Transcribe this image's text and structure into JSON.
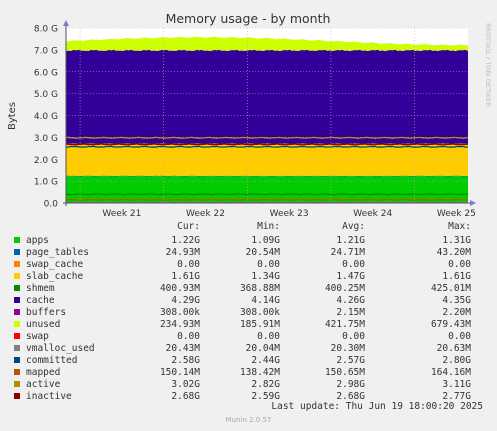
{
  "chart_data": {
    "type": "area",
    "title": "Memory usage - by month",
    "ylabel": "Bytes",
    "side_label": "RRDTOOL / TOBI OETIKER",
    "x_ticks": [
      "Week 21",
      "Week 22",
      "Week 23",
      "Week 24",
      "Week 25"
    ],
    "y_ticks": [
      "0.0",
      "1.0 G",
      "2.0 G",
      "3.0 G",
      "4.0 G",
      "5.0 G",
      "6.0 G",
      "7.0 G",
      "8.0 G"
    ],
    "ylim": [
      0,
      8
    ],
    "y_unit": "G",
    "grid": true,
    "stack_series": [
      {
        "name": "apps",
        "value": 1.22,
        "color": "#00cc00"
      },
      {
        "name": "page_tables",
        "value": 0.025,
        "color": "#0066b3"
      },
      {
        "name": "swap_cache",
        "value": 0.0,
        "color": "#ff8000"
      },
      {
        "name": "slab_cache",
        "value": 1.47,
        "color": "#ffcc00"
      },
      {
        "name": "cache",
        "value": 4.26,
        "color": "#330099"
      },
      {
        "name": "buffers",
        "value": 0.002,
        "color": "#990099"
      },
      {
        "name": "unused",
        "value": 0.42,
        "color": "#ccff00"
      }
    ],
    "line_series": [
      {
        "name": "shmem",
        "value": 0.4,
        "color": "#008f00"
      },
      {
        "name": "vmalloc_used",
        "value": 0.02,
        "color": "#808080"
      },
      {
        "name": "committed",
        "value": 2.57,
        "color": "#00487d"
      },
      {
        "name": "mapped",
        "value": 0.15,
        "color": "#b35a00"
      },
      {
        "name": "active",
        "value": 2.98,
        "color": "#b38f00"
      },
      {
        "name": "inactive",
        "value": 2.68,
        "color": "#8c0000"
      }
    ]
  },
  "legend": {
    "headers": {
      "cur": "Cur:",
      "min": "Min:",
      "avg": "Avg:",
      "max": "Max:"
    },
    "rows": [
      {
        "name": "apps",
        "color": "#00cc00",
        "cur": "1.22G",
        "min": "1.09G",
        "avg": "1.21G",
        "max": "1.31G"
      },
      {
        "name": "page_tables",
        "color": "#0066b3",
        "cur": "24.93M",
        "min": "20.54M",
        "avg": "24.71M",
        "max": "43.20M"
      },
      {
        "name": "swap_cache",
        "color": "#ff8000",
        "cur": "0.00",
        "min": "0.00",
        "avg": "0.00",
        "max": "0.00"
      },
      {
        "name": "slab_cache",
        "color": "#ffcc00",
        "cur": "1.61G",
        "min": "1.34G",
        "avg": "1.47G",
        "max": "1.61G"
      },
      {
        "name": "shmem",
        "color": "#008f00",
        "cur": "400.93M",
        "min": "368.88M",
        "avg": "400.25M",
        "max": "425.01M"
      },
      {
        "name": "cache",
        "color": "#330099",
        "cur": "4.29G",
        "min": "4.14G",
        "avg": "4.26G",
        "max": "4.35G"
      },
      {
        "name": "buffers",
        "color": "#990099",
        "cur": "308.00k",
        "min": "308.00k",
        "avg": "2.15M",
        "max": "2.20M"
      },
      {
        "name": "unused",
        "color": "#ccff00",
        "cur": "234.93M",
        "min": "185.91M",
        "avg": "421.75M",
        "max": "679.43M"
      },
      {
        "name": "swap",
        "color": "#ff0000",
        "cur": "0.00",
        "min": "0.00",
        "avg": "0.00",
        "max": "0.00"
      },
      {
        "name": "vmalloc_used",
        "color": "#808080",
        "cur": "20.43M",
        "min": "20.04M",
        "avg": "20.30M",
        "max": "20.63M"
      },
      {
        "name": "committed",
        "color": "#00487d",
        "cur": "2.58G",
        "min": "2.44G",
        "avg": "2.57G",
        "max": "2.80G"
      },
      {
        "name": "mapped",
        "color": "#b35a00",
        "cur": "150.14M",
        "min": "138.42M",
        "avg": "150.65M",
        "max": "164.16M"
      },
      {
        "name": "active",
        "color": "#b38f00",
        "cur": "3.02G",
        "min": "2.82G",
        "avg": "2.98G",
        "max": "3.11G"
      },
      {
        "name": "inactive",
        "color": "#8c0000",
        "cur": "2.68G",
        "min": "2.59G",
        "avg": "2.68G",
        "max": "2.77G"
      }
    ]
  },
  "footer": {
    "last_update": "Last update: Thu Jun 19 18:00:20 2025",
    "version": "Munin 2.0.57"
  }
}
